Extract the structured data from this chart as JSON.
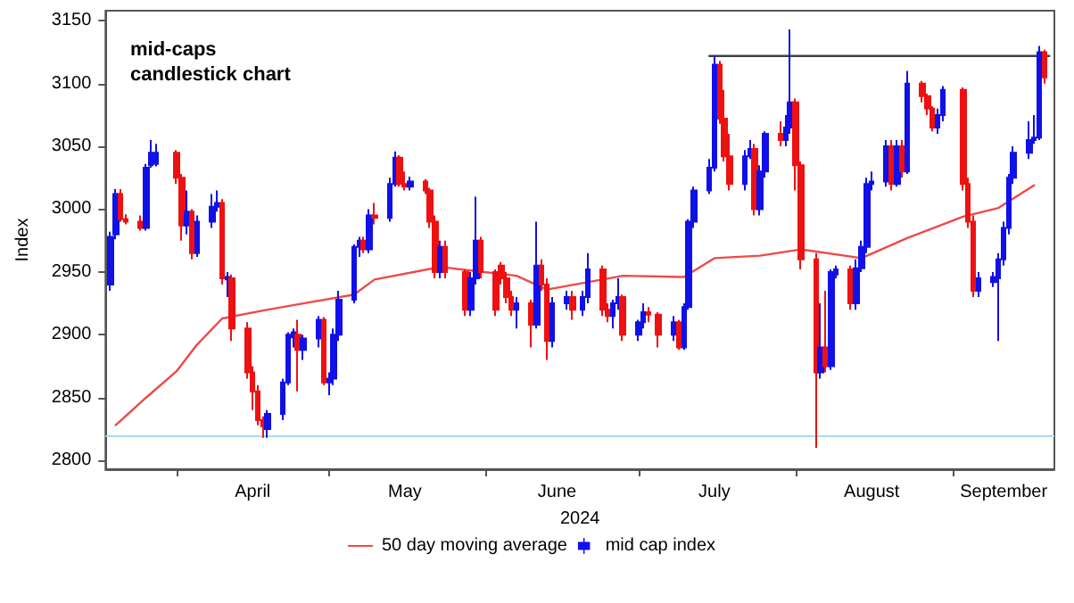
{
  "chart_data": {
    "type": "candlestick",
    "title": "mid-caps candlestick chart",
    "xlabel": "2024",
    "ylabel": "Index",
    "ylim": [
      2793,
      3158
    ],
    "yticks": [
      2800,
      2850,
      2900,
      2950,
      3000,
      3050,
      3100,
      3150
    ],
    "xlim": [
      "2024-03-18",
      "2024-09-21"
    ],
    "xticks": [
      {
        "value": "2024-04-01",
        "label": null
      },
      {
        "value": "2024-05-01",
        "label": null
      },
      {
        "value": "2024-06-01",
        "label": null
      },
      {
        "value": "2024-07-01",
        "label": null
      },
      {
        "value": "2024-08-01",
        "label": null
      },
      {
        "value": "2024-09-01",
        "label": null
      },
      {
        "value": "2024-04-16",
        "label": "April"
      },
      {
        "value": "2024-05-16",
        "label": "May"
      },
      {
        "value": "2024-06-15",
        "label": "June"
      },
      {
        "value": "2024-07-16",
        "label": "July"
      },
      {
        "value": "2024-08-16",
        "label": "August"
      },
      {
        "value": "2024-09-11",
        "label": "September"
      }
    ],
    "grid": false,
    "legend": "bottom",
    "ref_lines": [
      {
        "axis": "y",
        "value": 2820,
        "label": null,
        "color": "#a8dcef"
      }
    ],
    "series": [
      {
        "type": "line",
        "name": "50 day moving average",
        "color": "#f04848",
        "line_style": "solid",
        "marker": "none",
        "x": [
          "2024-03-20",
          "2024-03-26",
          "2024-04-01",
          "2024-04-05",
          "2024-04-10",
          "2024-04-19",
          "2024-04-26",
          "2024-05-06",
          "2024-05-10",
          "2024-05-23",
          "2024-06-07",
          "2024-06-13",
          "2024-06-28",
          "2024-07-10",
          "2024-07-16",
          "2024-07-25",
          "2024-08-02",
          "2024-08-14",
          "2024-08-23",
          "2024-09-03",
          "2024-09-10",
          "2024-09-17"
        ],
        "values": [
          2828,
          2850,
          2871,
          2892,
          2913,
          2920,
          2925,
          2932,
          2944,
          2954,
          2947,
          2936,
          2947,
          2946,
          2961,
          2963,
          2968,
          2961,
          2977,
          2994,
          3001,
          3019
        ]
      },
      {
        "type": "candlestick",
        "name": "mid cap index",
        "x": [
          "2024-03-19",
          "2024-03-20",
          "2024-03-21",
          "2024-03-22",
          "2024-03-25",
          "2024-03-26",
          "2024-03-27",
          "2024-03-28",
          "2024-04-01",
          "2024-04-02",
          "2024-04-03",
          "2024-04-04",
          "2024-04-05",
          "2024-04-08",
          "2024-04-09",
          "2024-04-10",
          "2024-04-11",
          "2024-04-12",
          "2024-04-15",
          "2024-04-16",
          "2024-04-17",
          "2024-04-18",
          "2024-04-19",
          "2024-04-22",
          "2024-04-23",
          "2024-04-24",
          "2024-04-25",
          "2024-04-26",
          "2024-04-29",
          "2024-04-30",
          "2024-05-01",
          "2024-05-02",
          "2024-05-03",
          "2024-05-06",
          "2024-05-07",
          "2024-05-08",
          "2024-05-09",
          "2024-05-10",
          "2024-05-13",
          "2024-05-14",
          "2024-05-15",
          "2024-05-16",
          "2024-05-17",
          "2024-05-20",
          "2024-05-21",
          "2024-05-22",
          "2024-05-23",
          "2024-05-24",
          "2024-05-28",
          "2024-05-29",
          "2024-05-30",
          "2024-05-31",
          "2024-06-03",
          "2024-06-04",
          "2024-06-05",
          "2024-06-06",
          "2024-06-07",
          "2024-06-10",
          "2024-06-11",
          "2024-06-12",
          "2024-06-13",
          "2024-06-14",
          "2024-06-17",
          "2024-06-18",
          "2024-06-20",
          "2024-06-21",
          "2024-06-24",
          "2024-06-25",
          "2024-06-26",
          "2024-06-27",
          "2024-06-28",
          "2024-07-01",
          "2024-07-02",
          "2024-07-03",
          "2024-07-05",
          "2024-07-08",
          "2024-07-09",
          "2024-07-10",
          "2024-07-11",
          "2024-07-12",
          "2024-07-15",
          "2024-07-16",
          "2024-07-17",
          "2024-07-18",
          "2024-07-19",
          "2024-07-22",
          "2024-07-23",
          "2024-07-24",
          "2024-07-25",
          "2024-07-26",
          "2024-07-29",
          "2024-07-30",
          "2024-07-31",
          "2024-08-01",
          "2024-08-02",
          "2024-08-05",
          "2024-08-06",
          "2024-08-07",
          "2024-08-08",
          "2024-08-09",
          "2024-08-12",
          "2024-08-13",
          "2024-08-14",
          "2024-08-15",
          "2024-08-16",
          "2024-08-19",
          "2024-08-20",
          "2024-08-21",
          "2024-08-22",
          "2024-08-23",
          "2024-08-26",
          "2024-08-27",
          "2024-08-28",
          "2024-08-29",
          "2024-08-30",
          "2024-09-03",
          "2024-09-04",
          "2024-09-05",
          "2024-09-06",
          "2024-09-09",
          "2024-09-10",
          "2024-09-11",
          "2024-09-12",
          "2024-09-13",
          "2024-09-16",
          "2024-09-17",
          "2024-09-18",
          "2024-09-19"
        ],
        "ohlc": [
          [
            2940,
            2982,
            2935,
            2978
          ],
          [
            2980,
            3016,
            2976,
            3012
          ],
          [
            3012,
            3016,
            2990,
            2992
          ],
          [
            2992,
            2996,
            2988,
            2990
          ],
          [
            2990,
            2995,
            2983,
            2985
          ],
          [
            2985,
            3036,
            2983,
            3033
          ],
          [
            3035,
            3055,
            3033,
            3045
          ],
          [
            3036,
            3052,
            3034,
            3045
          ],
          [
            3045,
            3047,
            3020,
            3025
          ],
          [
            3025,
            3028,
            2975,
            2987
          ],
          [
            2987,
            3015,
            2980,
            2998
          ],
          [
            2998,
            3000,
            2960,
            2965
          ],
          [
            2965,
            2995,
            2962,
            2990
          ],
          [
            2990,
            3012,
            2985,
            3002
          ],
          [
            3002,
            3015,
            2998,
            3005
          ],
          [
            3005,
            3008,
            2940,
            2945
          ],
          [
            2944,
            2950,
            2930,
            2946
          ],
          [
            2945,
            2948,
            2895,
            2905
          ],
          [
            2905,
            2910,
            2865,
            2870
          ],
          [
            2870,
            2875,
            2840,
            2855
          ],
          [
            2855,
            2860,
            2828,
            2832
          ],
          [
            2832,
            2835,
            2818,
            2827
          ],
          [
            2825,
            2840,
            2818,
            2837
          ],
          [
            2837,
            2865,
            2832,
            2862
          ],
          [
            2862,
            2902,
            2860,
            2900
          ],
          [
            2898,
            2905,
            2890,
            2902
          ],
          [
            2900,
            2912,
            2855,
            2888
          ],
          [
            2888,
            2900,
            2880,
            2897
          ],
          [
            2897,
            2915,
            2890,
            2912
          ],
          [
            2912,
            2914,
            2860,
            2862
          ],
          [
            2862,
            2870,
            2852,
            2865
          ],
          [
            2865,
            2905,
            2860,
            2900
          ],
          [
            2900,
            2935,
            2895,
            2928
          ],
          [
            2928,
            2972,
            2925,
            2970
          ],
          [
            2970,
            2978,
            2962,
            2975
          ],
          [
            2975,
            2978,
            2965,
            2968
          ],
          [
            2968,
            3000,
            2965,
            2995
          ],
          [
            2995,
            3005,
            2988,
            2993
          ],
          [
            2993,
            3025,
            2990,
            3020
          ],
          [
            3020,
            3046,
            3018,
            3041
          ],
          [
            3041,
            3043,
            3018,
            3020
          ],
          [
            3020,
            3030,
            3015,
            3018
          ],
          [
            3018,
            3026,
            3015,
            3022
          ],
          [
            3022,
            3024,
            3012,
            3015
          ],
          [
            3015,
            3017,
            2985,
            2990
          ],
          [
            2990,
            2995,
            2945,
            2950
          ],
          [
            2950,
            2975,
            2945,
            2970
          ],
          [
            2970,
            2975,
            2945,
            2950
          ],
          [
            2950,
            2952,
            2915,
            2920
          ],
          [
            2920,
            2950,
            2915,
            2945
          ],
          [
            2945,
            3010,
            2940,
            2975
          ],
          [
            2975,
            2978,
            2945,
            2950
          ],
          [
            2950,
            2952,
            2915,
            2920
          ],
          [
            2955,
            2958,
            2940,
            2945
          ],
          [
            2945,
            2950,
            2925,
            2930
          ],
          [
            2930,
            2935,
            2915,
            2920
          ],
          [
            2920,
            2930,
            2905,
            2925
          ],
          [
            2925,
            2928,
            2890,
            2908
          ],
          [
            2908,
            2990,
            2905,
            2955
          ],
          [
            2955,
            2960,
            2935,
            2940
          ],
          [
            2940,
            2945,
            2880,
            2895
          ],
          [
            2895,
            2930,
            2890,
            2925
          ],
          [
            2925,
            2935,
            2920,
            2930
          ],
          [
            2930,
            2935,
            2912,
            2920
          ],
          [
            2920,
            2935,
            2915,
            2930
          ],
          [
            2930,
            2965,
            2925,
            2952
          ],
          [
            2952,
            2955,
            2915,
            2920
          ],
          [
            2920,
            2925,
            2910,
            2915
          ],
          [
            2915,
            2928,
            2905,
            2925
          ],
          [
            2925,
            2945,
            2920,
            2930
          ],
          [
            2930,
            2932,
            2895,
            2900
          ],
          [
            2900,
            2912,
            2895,
            2910
          ],
          [
            2910,
            2925,
            2905,
            2918
          ],
          [
            2918,
            2922,
            2910,
            2916
          ],
          [
            2916,
            2918,
            2890,
            2900
          ],
          [
            2900,
            2915,
            2895,
            2910
          ],
          [
            2910,
            2912,
            2888,
            2890
          ],
          [
            2890,
            2925,
            2888,
            2922
          ],
          [
            2922,
            2992,
            2920,
            2990
          ],
          [
            2990,
            3018,
            2985,
            3015
          ],
          [
            3015,
            3040,
            3012,
            3033
          ],
          [
            3033,
            3122,
            3030,
            3115
          ],
          [
            3115,
            3118,
            3068,
            3072
          ],
          [
            3072,
            3095,
            3038,
            3042
          ],
          [
            3042,
            3060,
            3015,
            3020
          ],
          [
            3020,
            3047,
            3015,
            3042
          ],
          [
            3042,
            3055,
            3040,
            3048
          ],
          [
            3048,
            3052,
            2995,
            3000
          ],
          [
            3000,
            3035,
            2995,
            3030
          ],
          [
            3030,
            3062,
            3025,
            3060
          ],
          [
            3060,
            3070,
            3050,
            3055
          ],
          [
            3055,
            3075,
            3050,
            3065
          ],
          [
            3065,
            3143,
            3060,
            3085
          ],
          [
            3085,
            3088,
            3015,
            3035
          ],
          [
            3035,
            3038,
            2952,
            2960
          ],
          [
            2960,
            2965,
            2810,
            2870
          ],
          [
            2870,
            2925,
            2865,
            2890
          ],
          [
            2890,
            2935,
            2870,
            2875
          ],
          [
            2875,
            2952,
            2872,
            2950
          ],
          [
            2948,
            2955,
            2945,
            2952
          ],
          [
            2952,
            2955,
            2920,
            2925
          ],
          [
            2925,
            2960,
            2920,
            2953
          ],
          [
            2953,
            2975,
            2950,
            2970
          ],
          [
            2970,
            3025,
            2965,
            3020
          ],
          [
            3020,
            3030,
            3015,
            3022
          ],
          [
            3022,
            3055,
            3018,
            3050
          ],
          [
            3050,
            3055,
            3015,
            3020
          ],
          [
            3020,
            3055,
            3018,
            3050
          ],
          [
            3050,
            3055,
            3025,
            3030
          ],
          [
            3030,
            3110,
            3028,
            3100
          ],
          [
            3100,
            3102,
            3085,
            3090
          ],
          [
            3090,
            3092,
            3075,
            3080
          ],
          [
            3080,
            3082,
            3062,
            3065
          ],
          [
            3065,
            3080,
            3060,
            3075
          ],
          [
            3075,
            3098,
            3070,
            3095
          ],
          [
            3095,
            3097,
            3015,
            3020
          ],
          [
            3020,
            3025,
            2985,
            2990
          ],
          [
            2990,
            2995,
            2930,
            2935
          ],
          [
            2935,
            2950,
            2930,
            2945
          ],
          [
            2942,
            2950,
            2938,
            2946
          ],
          [
            2945,
            2965,
            2895,
            2960
          ],
          [
            2960,
            2990,
            2955,
            2985
          ],
          [
            2985,
            3028,
            2980,
            3025
          ],
          [
            3025,
            3050,
            3020,
            3045
          ],
          [
            3045,
            3070,
            3040,
            3055
          ],
          [
            3055,
            3075,
            3052,
            3057
          ],
          [
            3057,
            3130,
            3055,
            3125
          ],
          [
            3125,
            3127,
            3100,
            3105
          ]
        ],
        "colors": [
          "#1010e8",
          "#1010e8",
          "#ee1111",
          "#ee1111",
          "#ee1111",
          "#1010e8",
          "#1010e8",
          "#1010e8",
          "#ee1111",
          "#ee1111",
          "#1010e8",
          "#ee1111",
          "#1010e8",
          "#1010e8",
          "#1010e8",
          "#ee1111",
          "#1010e8",
          "#ee1111",
          "#ee1111",
          "#ee1111",
          "#ee1111",
          "#ee1111",
          "#1010e8",
          "#1010e8",
          "#1010e8",
          "#1010e8",
          "#ee1111",
          "#1010e8",
          "#1010e8",
          "#ee1111",
          "#1010e8",
          "#1010e8",
          "#1010e8",
          "#1010e8",
          "#1010e8",
          "#ee1111",
          "#1010e8",
          "#ee1111",
          "#1010e8",
          "#1010e8",
          "#ee1111",
          "#ee1111",
          "#1010e8",
          "#ee1111",
          "#ee1111",
          "#ee1111",
          "#1010e8",
          "#ee1111",
          "#ee1111",
          "#1010e8",
          "#1010e8",
          "#ee1111",
          "#ee1111",
          "#ee1111",
          "#ee1111",
          "#ee1111",
          "#1010e8",
          "#ee1111",
          "#1010e8",
          "#ee1111",
          "#ee1111",
          "#1010e8",
          "#1010e8",
          "#ee1111",
          "#1010e8",
          "#1010e8",
          "#ee1111",
          "#ee1111",
          "#1010e8",
          "#1010e8",
          "#ee1111",
          "#1010e8",
          "#1010e8",
          "#ee1111",
          "#ee1111",
          "#1010e8",
          "#ee1111",
          "#1010e8",
          "#1010e8",
          "#1010e8",
          "#1010e8",
          "#1010e8",
          "#ee1111",
          "#ee1111",
          "#ee1111",
          "#1010e8",
          "#1010e8",
          "#ee1111",
          "#1010e8",
          "#1010e8",
          "#ee1111",
          "#1010e8",
          "#1010e8",
          "#ee1111",
          "#ee1111",
          "#ee1111",
          "#1010e8",
          "#ee1111",
          "#1010e8",
          "#1010e8",
          "#ee1111",
          "#1010e8",
          "#1010e8",
          "#1010e8",
          "#1010e8",
          "#1010e8",
          "#ee1111",
          "#1010e8",
          "#ee1111",
          "#1010e8",
          "#ee1111",
          "#ee1111",
          "#ee1111",
          "#1010e8",
          "#1010e8",
          "#ee1111",
          "#ee1111",
          "#ee1111",
          "#1010e8",
          "#1010e8",
          "#1010e8",
          "#1010e8",
          "#1010e8",
          "#1010e8",
          "#1010e8",
          "#1010e8",
          "#1010e8",
          "#ee1111"
        ]
      },
      {
        "type": "line",
        "color": "#404040",
        "line_style": "solid",
        "marker": "none",
        "x": [
          "2024-07-15",
          "2024-09-20"
        ],
        "values": [
          3122,
          3122
        ]
      }
    ]
  }
}
